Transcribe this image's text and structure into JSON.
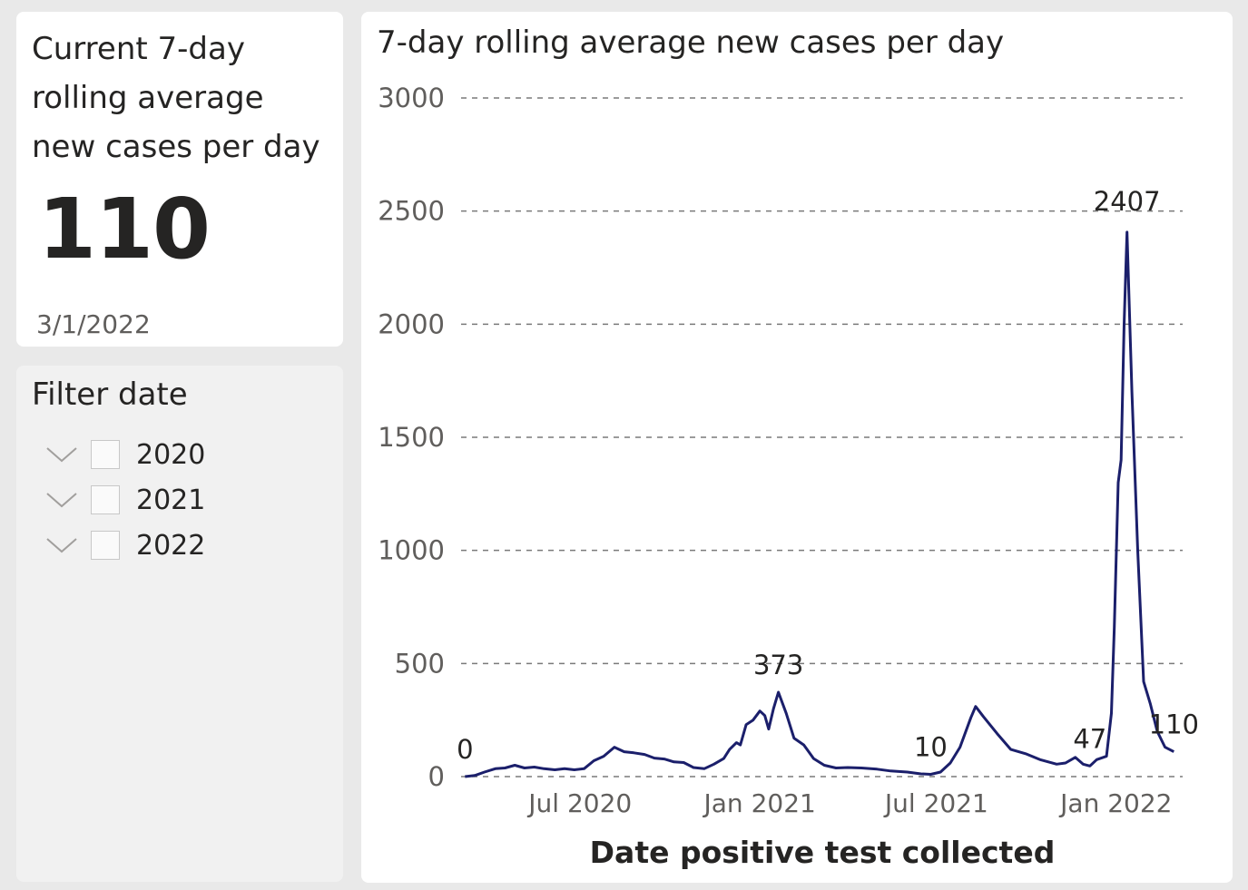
{
  "kpi": {
    "title_lines": [
      "Current 7-day",
      "rolling average",
      "new cases per day"
    ],
    "value": "110",
    "date": "3/1/2022"
  },
  "filter": {
    "title": "Filter date",
    "items": [
      {
        "label": "2020",
        "checked": false
      },
      {
        "label": "2021",
        "checked": false
      },
      {
        "label": "2022",
        "checked": false
      }
    ]
  },
  "chart": {
    "title": "7-day rolling average new cases per day"
  },
  "chart_data": {
    "type": "line",
    "title": "7-day rolling average new cases per day",
    "xlabel": "Date positive test collected",
    "ylabel": "",
    "ylim": [
      0,
      3000
    ],
    "yticks": [
      0,
      500,
      1000,
      1500,
      2000,
      2500,
      3000
    ],
    "xticks": [
      {
        "date": "2020-07-01",
        "label": "Jul 2020"
      },
      {
        "date": "2021-01-01",
        "label": "Jan 2021"
      },
      {
        "date": "2021-07-01",
        "label": "Jul 2021"
      },
      {
        "date": "2022-01-01",
        "label": "Jan 2022"
      }
    ],
    "xlim": [
      "2020-03-01",
      "2022-03-10"
    ],
    "grid": "horizontal dashed",
    "line_color": "#1b1f6b",
    "highlight_color": "#8e8fc0",
    "series": [
      {
        "points": [
          [
            "2020-03-05",
            0
          ],
          [
            "2020-03-15",
            5
          ],
          [
            "2020-03-25",
            20
          ],
          [
            "2020-04-05",
            35
          ],
          [
            "2020-04-15",
            38
          ],
          [
            "2020-04-25",
            50
          ],
          [
            "2020-05-05",
            38
          ],
          [
            "2020-05-15",
            42
          ],
          [
            "2020-05-25",
            35
          ],
          [
            "2020-06-05",
            30
          ],
          [
            "2020-06-15",
            35
          ],
          [
            "2020-06-25",
            30
          ],
          [
            "2020-07-05",
            35
          ],
          [
            "2020-07-15",
            70
          ],
          [
            "2020-07-25",
            90
          ],
          [
            "2020-08-05",
            130
          ],
          [
            "2020-08-15",
            110
          ],
          [
            "2020-08-25",
            105
          ],
          [
            "2020-09-05",
            98
          ],
          [
            "2020-09-15",
            82
          ],
          [
            "2020-09-25",
            78
          ],
          [
            "2020-10-05",
            65
          ],
          [
            "2020-10-15",
            62
          ],
          [
            "2020-10-25",
            40
          ],
          [
            "2020-11-05",
            35
          ],
          [
            "2020-11-15",
            55
          ],
          [
            "2020-11-25",
            80
          ],
          [
            "2020-12-01",
            120
          ],
          [
            "2020-12-08",
            150
          ],
          [
            "2020-12-12",
            140
          ],
          [
            "2020-12-18",
            230
          ],
          [
            "2020-12-25",
            250
          ],
          [
            "2021-01-01",
            290
          ],
          [
            "2021-01-06",
            270
          ],
          [
            "2021-01-10",
            210
          ],
          [
            "2021-01-15",
            300
          ],
          [
            "2021-01-20",
            373
          ],
          [
            "2021-01-28",
            280
          ],
          [
            "2021-02-05",
            170
          ],
          [
            "2021-02-15",
            140
          ],
          [
            "2021-02-25",
            80
          ],
          [
            "2021-03-08",
            50
          ],
          [
            "2021-03-20",
            38
          ],
          [
            "2021-04-01",
            40
          ],
          [
            "2021-04-15",
            38
          ],
          [
            "2021-05-01",
            33
          ],
          [
            "2021-05-15",
            25
          ],
          [
            "2021-06-01",
            20
          ],
          [
            "2021-06-15",
            12
          ],
          [
            "2021-06-25",
            10
          ],
          [
            "2021-07-05",
            20
          ],
          [
            "2021-07-15",
            60
          ],
          [
            "2021-07-25",
            130
          ],
          [
            "2021-08-05",
            260
          ],
          [
            "2021-08-10",
            310
          ],
          [
            "2021-08-18",
            265
          ],
          [
            "2021-09-01",
            190
          ],
          [
            "2021-09-15",
            120
          ],
          [
            "2021-10-01",
            100
          ],
          [
            "2021-10-15",
            75
          ],
          [
            "2021-11-01",
            55
          ],
          [
            "2021-11-10",
            60
          ],
          [
            "2021-11-20",
            85
          ],
          [
            "2021-11-28",
            55
          ],
          [
            "2021-12-05",
            47
          ],
          [
            "2021-12-12",
            75
          ],
          [
            "2021-12-22",
            90
          ],
          [
            "2021-12-27",
            280
          ],
          [
            "2021-12-30",
            660
          ],
          [
            "2022-01-03",
            1300
          ],
          [
            "2022-01-06",
            1400
          ],
          [
            "2022-01-09",
            2000
          ],
          [
            "2022-01-12",
            2407
          ],
          [
            "2022-01-17",
            1700
          ],
          [
            "2022-01-23",
            1000
          ],
          [
            "2022-01-29",
            420
          ],
          [
            "2022-02-05",
            320
          ],
          [
            "2022-02-12",
            200
          ],
          [
            "2022-02-20",
            130
          ],
          [
            "2022-03-01",
            110
          ]
        ]
      }
    ],
    "annotations": [
      {
        "date": "2020-03-05",
        "value": 0,
        "label": "0"
      },
      {
        "date": "2021-01-20",
        "value": 373,
        "label": "373"
      },
      {
        "date": "2021-06-25",
        "value": 10,
        "label": "10"
      },
      {
        "date": "2021-12-05",
        "value": 47,
        "label": "47"
      },
      {
        "date": "2022-01-12",
        "value": 2407,
        "label": "2407"
      },
      {
        "date": "2022-03-01",
        "value": 110,
        "label": "110"
      }
    ]
  }
}
